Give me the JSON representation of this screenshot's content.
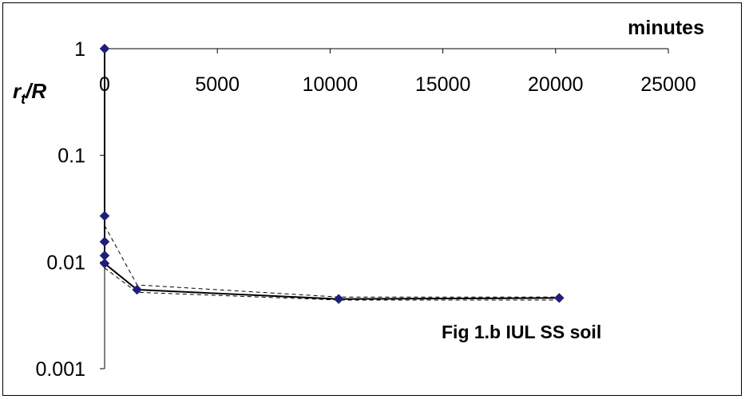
{
  "chart_data": {
    "type": "line",
    "title": "Fig 1.b  IUL SS soil",
    "xlabel": "minutes",
    "ylabel": {
      "r": "r",
      "sub": "t",
      "rest": "/R"
    },
    "x_axis": {
      "min": 0,
      "max": 25000,
      "ticks": [
        0,
        5000,
        10000,
        15000,
        20000,
        25000
      ],
      "tick_labels": [
        "0",
        "5000",
        "10000",
        "15000",
        "20000",
        "25000"
      ],
      "position": "top"
    },
    "y_axis": {
      "scale": "log",
      "min": 0.001,
      "max": 1,
      "ticks": [
        1,
        0.1,
        0.01,
        0.001
      ],
      "tick_labels": [
        "1",
        "0.1",
        "0.01",
        "0.001"
      ]
    },
    "grid": false,
    "legend": "none",
    "series": [
      {
        "style": "solid",
        "marker": "diamond",
        "x": [
          0,
          0,
          0,
          0,
          0,
          1440,
          10380,
          20160
        ],
        "y": [
          1,
          0.027,
          0.0155,
          0.0115,
          0.0097,
          0.0055,
          0.0045,
          0.0046
        ]
      },
      {
        "style": "dashed",
        "x": [
          0,
          1440,
          10380,
          20160
        ],
        "y": [
          0.022,
          0.0061,
          0.0047,
          0.0047
        ]
      },
      {
        "style": "dashed",
        "x": [
          0,
          1440,
          10380,
          20160
        ],
        "y": [
          0.0088,
          0.0052,
          0.0044,
          0.0044
        ]
      }
    ],
    "colors": {
      "marker": "#1f1f7a",
      "line": "#000000"
    }
  }
}
